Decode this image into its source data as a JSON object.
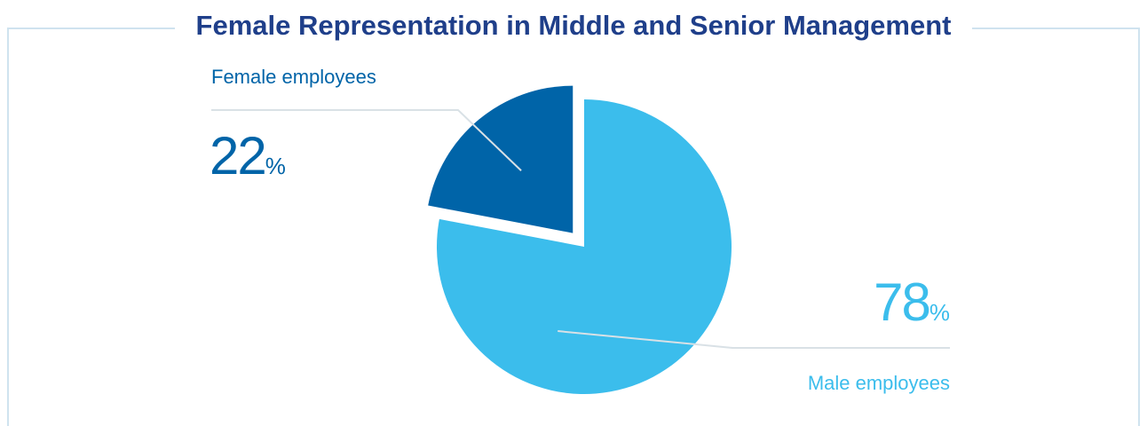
{
  "chart_data": {
    "type": "pie",
    "title": "Female Representation in Middle and Senior Management",
    "slices": [
      {
        "label": "Female employees",
        "value": 22,
        "unit": "%",
        "color": "#0064a8",
        "exploded": true
      },
      {
        "label": "Male employees",
        "value": 78,
        "unit": "%",
        "color": "#3bbdec",
        "exploded": false
      }
    ],
    "value_display": {
      "female": {
        "number": "22",
        "symbol": "%"
      },
      "male": {
        "number": "78",
        "symbol": "%"
      }
    },
    "leader_line_color": "#d9e1e6",
    "frame_color": "#cfe3ef"
  }
}
